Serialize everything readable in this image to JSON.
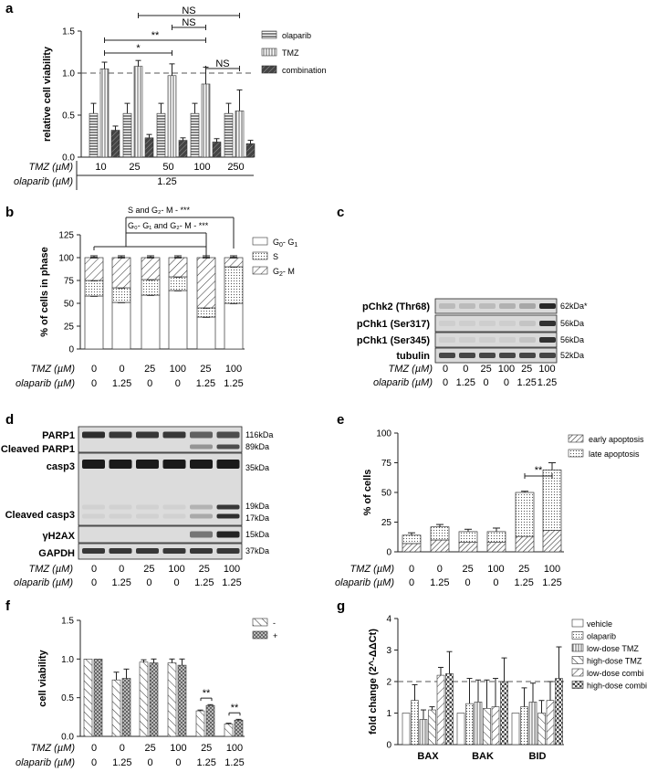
{
  "panels": {
    "a": {
      "label": "a",
      "chart_data": {
        "type": "bar",
        "ylabel": "relative cell viability",
        "ylim": [
          0,
          1.5
        ],
        "yticks": [
          "0.0",
          "0.5",
          "1.0",
          "1.5"
        ],
        "categories": [
          "10",
          "25",
          "50",
          "100",
          "250"
        ],
        "row1_label": "TMZ (µM)",
        "row2_label": "olaparib (µM)",
        "row2_value": "1.25",
        "series": [
          {
            "name": "olaparib",
            "values": [
              0.52,
              0.52,
              0.52,
              0.52,
              0.52
            ],
            "err": [
              0.12,
              0.12,
              0.12,
              0.12,
              0.12
            ],
            "pattern": "hlines"
          },
          {
            "name": "TMZ",
            "values": [
              1.05,
              1.08,
              0.97,
              0.87,
              0.55
            ],
            "err": [
              0.08,
              0.07,
              0.14,
              0.2,
              0.25
            ],
            "pattern": "vlines"
          },
          {
            "name": "combination",
            "values": [
              0.32,
              0.23,
              0.2,
              0.18,
              0.16
            ],
            "err": [
              0.05,
              0.04,
              0.03,
              0.04,
              0.04
            ],
            "pattern": "dense"
          }
        ],
        "reference_line": 1.0,
        "significance": [
          {
            "from": 1,
            "to": 4,
            "text": "NS"
          },
          {
            "from": 2,
            "to": 3,
            "text": "NS"
          },
          {
            "from": 0,
            "to": 3,
            "text": "**"
          },
          {
            "from": 0,
            "to": 2,
            "text": "*"
          },
          {
            "from": 3,
            "to": 4,
            "text": "NS",
            "short": true
          }
        ]
      }
    },
    "b": {
      "label": "b",
      "chart_data": {
        "type": "bar",
        "ylabel": "% of cells in phase",
        "ylim": [
          0,
          125
        ],
        "yticks": [
          "0",
          "25",
          "50",
          "75",
          "100",
          "125"
        ],
        "tmz": [
          "0",
          "0",
          "25",
          "100",
          "25",
          "100"
        ],
        "olaparib": [
          "0",
          "1.25",
          "0",
          "0",
          "1.25",
          "1.25"
        ],
        "row1_label": "TMZ (µM)",
        "row2_label": "olaparib (µM)",
        "series": [
          {
            "name": "G0-G1",
            "values": [
              58,
              51,
              59,
              64,
              35,
              50
            ]
          },
          {
            "name": "S",
            "values": [
              17,
              16,
              17,
              15,
              10,
              40
            ]
          },
          {
            "name": "G2-M",
            "values": [
              25,
              33,
              24,
              21,
              55,
              10
            ]
          }
        ],
        "legend": [
          {
            "main": "G",
            "sub": "0",
            "mid": "- G",
            "sub2": "1"
          },
          {
            "main": "S",
            "sub": "",
            "mid": "",
            "sub2": ""
          },
          {
            "main": "G",
            "sub": "2",
            "mid": "- M",
            "sub2": ""
          }
        ],
        "annot1": "S and G₂- M - ***",
        "annot2": "G₀- G₁ and G₂- M - ***"
      }
    },
    "c": {
      "label": "c",
      "rows": [
        {
          "name": "pChk2 (Thr68)",
          "kda": "62kDa*"
        },
        {
          "name": "pChk1 (Ser317)",
          "kda": "56kDa"
        },
        {
          "name": "pChk1 (Ser345)",
          "kda": "56kDa"
        },
        {
          "name": "tubulin",
          "kda": "52kDa"
        }
      ],
      "tmz": [
        "0",
        "0",
        "25",
        "100",
        "25",
        "100"
      ],
      "olaparib": [
        "0",
        "1.25",
        "0",
        "0",
        "1.25",
        "1.25"
      ],
      "row1_label": "TMZ (µM)",
      "row2_label": "olaparib (µM)"
    },
    "d": {
      "label": "d",
      "left_labels": [
        "PARP1",
        "Cleaved PARP1",
        "casp3",
        "Cleaved casp3",
        "γH2AX",
        "GAPDH"
      ],
      "kda": [
        "116kDa",
        "89kDa",
        "35kDa",
        "19kDa",
        "17kDa",
        "15kDa",
        "37kDa"
      ],
      "tmz": [
        "0",
        "0",
        "25",
        "100",
        "25",
        "100"
      ],
      "olaparib": [
        "0",
        "1.25",
        "0",
        "0",
        "1.25",
        "1.25"
      ],
      "row1_label": "TMZ (µM)",
      "row2_label": "olaparib (µM)"
    },
    "e": {
      "label": "e",
      "chart_data": {
        "type": "bar",
        "ylabel": "% of cells",
        "ylim": [
          0,
          100
        ],
        "yticks": [
          "0",
          "25",
          "50",
          "75",
          "100"
        ],
        "tmz": [
          "0",
          "0",
          "25",
          "100",
          "25",
          "100"
        ],
        "olaparib": [
          "0",
          "1.25",
          "0",
          "0",
          "1.25",
          "1.25"
        ],
        "row1_label": "TMZ (µM)",
        "row2_label": "olaparib (µM)",
        "series": [
          {
            "name": "early apoptosis",
            "values": [
              7,
              10,
              8,
              8,
              13,
              18
            ],
            "err": [
              2,
              2,
              2,
              2,
              3,
              8
            ]
          },
          {
            "name": "late apoptosis",
            "values": [
              7,
              11,
              9,
              9,
              37,
              51
            ],
            "err": [
              2,
              2,
              2,
              3,
              1,
              6
            ]
          }
        ],
        "significance": [
          {
            "from": 4,
            "to": 5,
            "text": "**"
          }
        ]
      }
    },
    "f": {
      "label": "f",
      "chart_data": {
        "type": "bar",
        "ylabel": "cell viability",
        "ylim": [
          0,
          1.5
        ],
        "yticks": [
          "0.0",
          "0.5",
          "1.0",
          "1.5"
        ],
        "tmz": [
          "0",
          "0",
          "25",
          "100",
          "25",
          "100"
        ],
        "olaparib": [
          "0",
          "1.25",
          "0",
          "0",
          "1.25",
          "1.25"
        ],
        "row1_label": "TMZ (µM)",
        "row2_label": "olaparib (µM)",
        "series": [
          {
            "name": "-",
            "values": [
              1.0,
              0.73,
              0.96,
              0.95,
              0.33,
              0.16
            ],
            "err": [
              0,
              0.1,
              0.03,
              0.05,
              0.01,
              0.01
            ]
          },
          {
            "name": "+",
            "values": [
              1.0,
              0.75,
              0.95,
              0.92,
              0.4,
              0.21
            ],
            "err": [
              0,
              0.12,
              0.05,
              0.08,
              0.01,
              0.01
            ]
          }
        ],
        "significance": [
          {
            "from": 4,
            "text": "**"
          },
          {
            "from": 5,
            "text": "**"
          }
        ]
      }
    },
    "g": {
      "label": "g",
      "chart_data": {
        "type": "bar",
        "ylabel": "fold change (2^-ΔΔCt)",
        "ylim": [
          0,
          4
        ],
        "yticks": [
          "0",
          "1",
          "2",
          "3",
          "4"
        ],
        "categories": [
          "BAX",
          "BAK",
          "BID"
        ],
        "reference_line": 2,
        "series": [
          {
            "name": "vehicle",
            "values": [
              1.0,
              1.0,
              1.0
            ],
            "err": [
              0,
              0,
              0
            ]
          },
          {
            "name": "olaparib",
            "values": [
              1.4,
              1.3,
              1.2
            ],
            "err": [
              0.5,
              0.8,
              0.6
            ]
          },
          {
            "name": "low-dose TMZ",
            "values": [
              0.8,
              1.35,
              1.35
            ],
            "err": [
              0.3,
              0.7,
              0.6
            ]
          },
          {
            "name": "high-dose TMZ",
            "values": [
              1.1,
              1.15,
              1.0
            ],
            "err": [
              0.1,
              0.9,
              0.4
            ]
          },
          {
            "name": "low-dose combi",
            "values": [
              2.2,
              1.2,
              1.4
            ],
            "err": [
              0.25,
              0.9,
              0.6
            ]
          },
          {
            "name": "high-dose combi",
            "values": [
              2.25,
              2.0,
              2.1
            ],
            "err": [
              0.7,
              0.75,
              1.0
            ]
          }
        ]
      }
    }
  }
}
